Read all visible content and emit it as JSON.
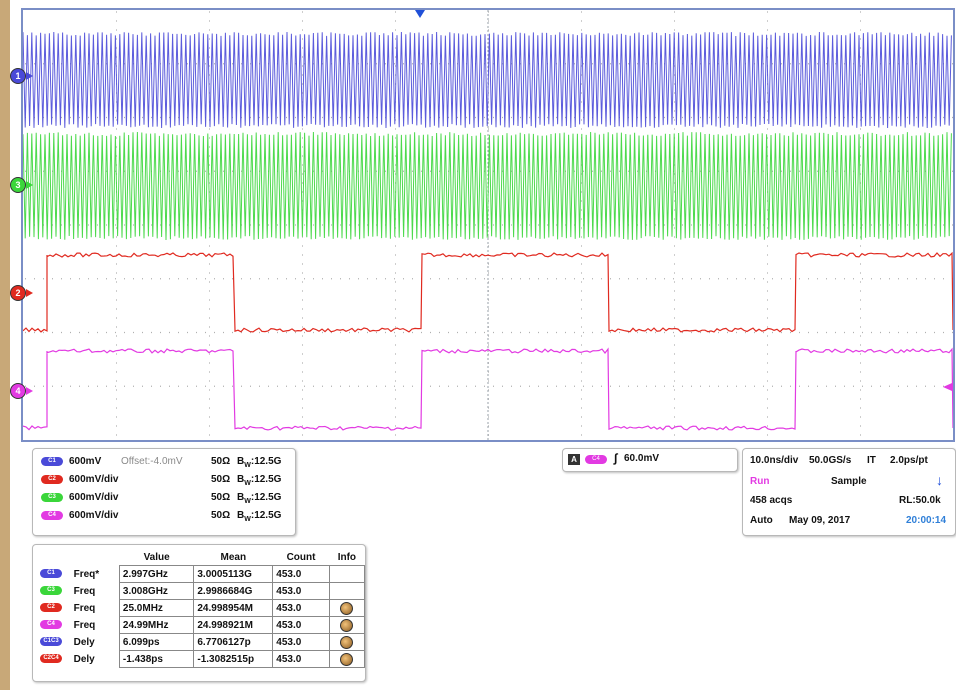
{
  "colors": {
    "c1": "#4a4ad8",
    "c2": "#e02a20",
    "c3": "#3ad63a",
    "c4": "#e23ae2",
    "grid": "#b0b0b0",
    "frame": "#7a8ec6"
  },
  "markers": [
    {
      "label": "1",
      "color": "#4a4ad8"
    },
    {
      "label": "3",
      "color": "#3ad63a"
    },
    {
      "label": "2",
      "color": "#e02a20"
    },
    {
      "label": "4",
      "color": "#e23ae2"
    }
  ],
  "vertical_panel": {
    "channels": [
      {
        "chip": "C1",
        "color": "#4a4ad8",
        "scale": "600mV",
        "offset": "Offset:-4.0mV",
        "impedance": "50Ω",
        "bw": "12.5G"
      },
      {
        "chip": "C2",
        "color": "#e02a20",
        "scale": "600mV/div",
        "offset": "",
        "impedance": "50Ω",
        "bw": "12.5G"
      },
      {
        "chip": "C3",
        "color": "#3ad63a",
        "scale": "600mV/div",
        "offset": "",
        "impedance": "50Ω",
        "bw": "12.5G"
      },
      {
        "chip": "C4",
        "color": "#e23ae2",
        "scale": "600mV/div",
        "offset": "",
        "impedance": "50Ω",
        "bw": "12.5G"
      }
    ],
    "bw_prefix": "B",
    "bw_sub": "W"
  },
  "trigger_panel": {
    "a_label": "A",
    "chip": "C4",
    "level": "60.0mV"
  },
  "horizontal_panel": {
    "timebase": "10.0ns/div",
    "sample_rate": "50.0GS/s",
    "mode_it": "IT",
    "res": "2.0ps/pt",
    "run_state": "Run",
    "acq_mode": "Sample",
    "acqs": "458 acqs",
    "record_length": "RL:50.0k",
    "trigger_mode": "Auto",
    "date": "May 09, 2017",
    "time": "20:00:14"
  },
  "measurements": {
    "headers": [
      "Value",
      "Mean",
      "Count",
      "Info"
    ],
    "rows": [
      {
        "chip": "C1",
        "color": "#4a4ad8",
        "label": "Freq*",
        "value": "2.997GHz",
        "mean": "3.0005113G",
        "count": "453.0",
        "info": false
      },
      {
        "chip": "C3",
        "color": "#3ad63a",
        "label": "Freq",
        "value": "3.008GHz",
        "mean": "2.9986684G",
        "count": "453.0",
        "info": false
      },
      {
        "chip": "C2",
        "color": "#e02a20",
        "label": "Freq",
        "value": "25.0MHz",
        "mean": "24.998954M",
        "count": "453.0",
        "info": true
      },
      {
        "chip": "C4",
        "color": "#e23ae2",
        "label": "Freq",
        "value": "24.99MHz",
        "mean": "24.998921M",
        "count": "453.0",
        "info": true
      },
      {
        "chip": "C1C3",
        "color": "#4a4ad8",
        "label": "Dely",
        "value": "6.099ps",
        "mean": "6.7706127p",
        "count": "453.0",
        "info": true
      },
      {
        "chip": "C2C4",
        "color": "#e02a20",
        "label": "Dely",
        "value": "-1.438ps",
        "mean": "-1.3082515p",
        "count": "453.0",
        "info": true
      }
    ]
  }
}
